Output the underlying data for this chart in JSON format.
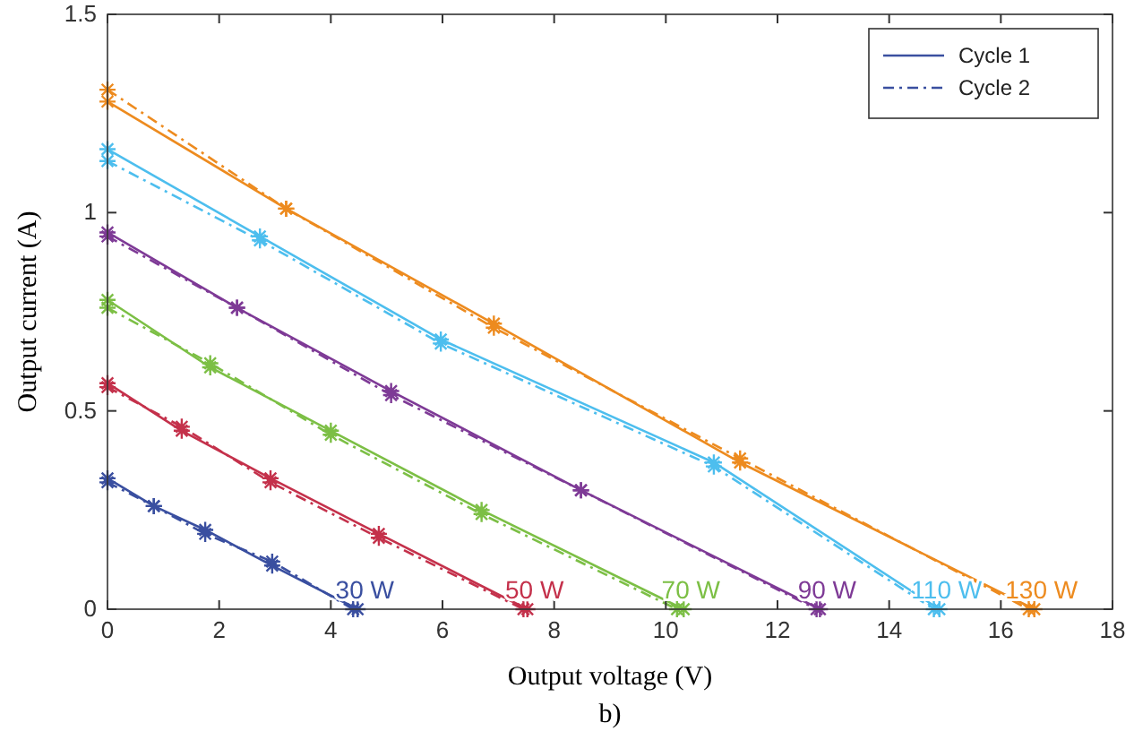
{
  "chart_data": {
    "type": "line",
    "xlabel": "Output voltage (V)",
    "ylabel": "Output current (A)",
    "xlim": [
      0,
      18
    ],
    "ylim": [
      0,
      1.5
    ],
    "xticks": [
      0,
      2,
      4,
      6,
      8,
      10,
      12,
      14,
      16,
      18
    ],
    "yticks": [
      0,
      0.5,
      1,
      1.5
    ],
    "grid": false,
    "legend": "top right",
    "marker": "cross",
    "series": [
      {
        "name": "Cycle 1",
        "color": "#3a4fa0",
        "line_style": "solid",
        "x": [
          0,
          0.83,
          1.75,
          2.95,
          4.48
        ],
        "values": [
          0.33,
          0.26,
          0.2,
          0.11,
          0
        ]
      },
      {
        "name": "Cycle 2",
        "color": "#3a4fa0",
        "line_style": "dashed",
        "x": [
          0,
          0.83,
          1.75,
          2.95,
          4.4
        ],
        "values": [
          0.32,
          0.26,
          0.19,
          0.12,
          0
        ]
      },
      {
        "color": "#c4314b",
        "line_style": "solid",
        "x": [
          0,
          1.33,
          2.92,
          4.86,
          7.52
        ],
        "values": [
          0.57,
          0.45,
          0.33,
          0.19,
          0
        ]
      },
      {
        "color": "#c4314b",
        "line_style": "dashed",
        "x": [
          0,
          1.33,
          2.92,
          4.86,
          7.45
        ],
        "values": [
          0.56,
          0.46,
          0.32,
          0.18,
          0
        ]
      },
      {
        "color": "#7cbf45",
        "line_style": "solid",
        "x": [
          0,
          1.84,
          4.0,
          6.7,
          10.32
        ],
        "values": [
          0.78,
          0.61,
          0.45,
          0.25,
          0
        ]
      },
      {
        "color": "#7cbf45",
        "line_style": "dashed",
        "x": [
          0,
          1.84,
          4.0,
          6.7,
          10.2
        ],
        "values": [
          0.76,
          0.62,
          0.44,
          0.24,
          0
        ]
      },
      {
        "color": "#7e3a96",
        "line_style": "solid",
        "x": [
          0,
          2.32,
          5.08,
          8.48,
          12.76
        ],
        "values": [
          0.95,
          0.76,
          0.55,
          0.3,
          0
        ]
      },
      {
        "color": "#7e3a96",
        "line_style": "dashed",
        "x": [
          0,
          2.32,
          5.08,
          8.48,
          12.7
        ],
        "values": [
          0.94,
          0.76,
          0.54,
          0.3,
          0
        ]
      },
      {
        "color": "#4dbeee",
        "line_style": "solid",
        "x": [
          0,
          2.73,
          5.97,
          10.86,
          14.9
        ],
        "values": [
          1.16,
          0.94,
          0.68,
          0.37,
          0
        ]
      },
      {
        "color": "#4dbeee",
        "line_style": "dashed",
        "x": [
          0,
          2.73,
          5.97,
          10.86,
          14.8
        ],
        "values": [
          1.13,
          0.93,
          0.67,
          0.36,
          0
        ]
      },
      {
        "color": "#ed8b1f",
        "line_style": "solid",
        "x": [
          0,
          3.2,
          6.92,
          11.33,
          16.6
        ],
        "values": [
          1.28,
          1.01,
          0.72,
          0.37,
          0
        ]
      },
      {
        "color": "#ed8b1f",
        "line_style": "dashed",
        "x": [
          0,
          3.2,
          6.92,
          11.33,
          16.5
        ],
        "values": [
          1.31,
          1.01,
          0.71,
          0.38,
          0
        ]
      }
    ],
    "annotations": [
      "30 W",
      "50 W",
      "70 W",
      "90 W",
      "110 W",
      "130 W",
      "b)"
    ]
  }
}
